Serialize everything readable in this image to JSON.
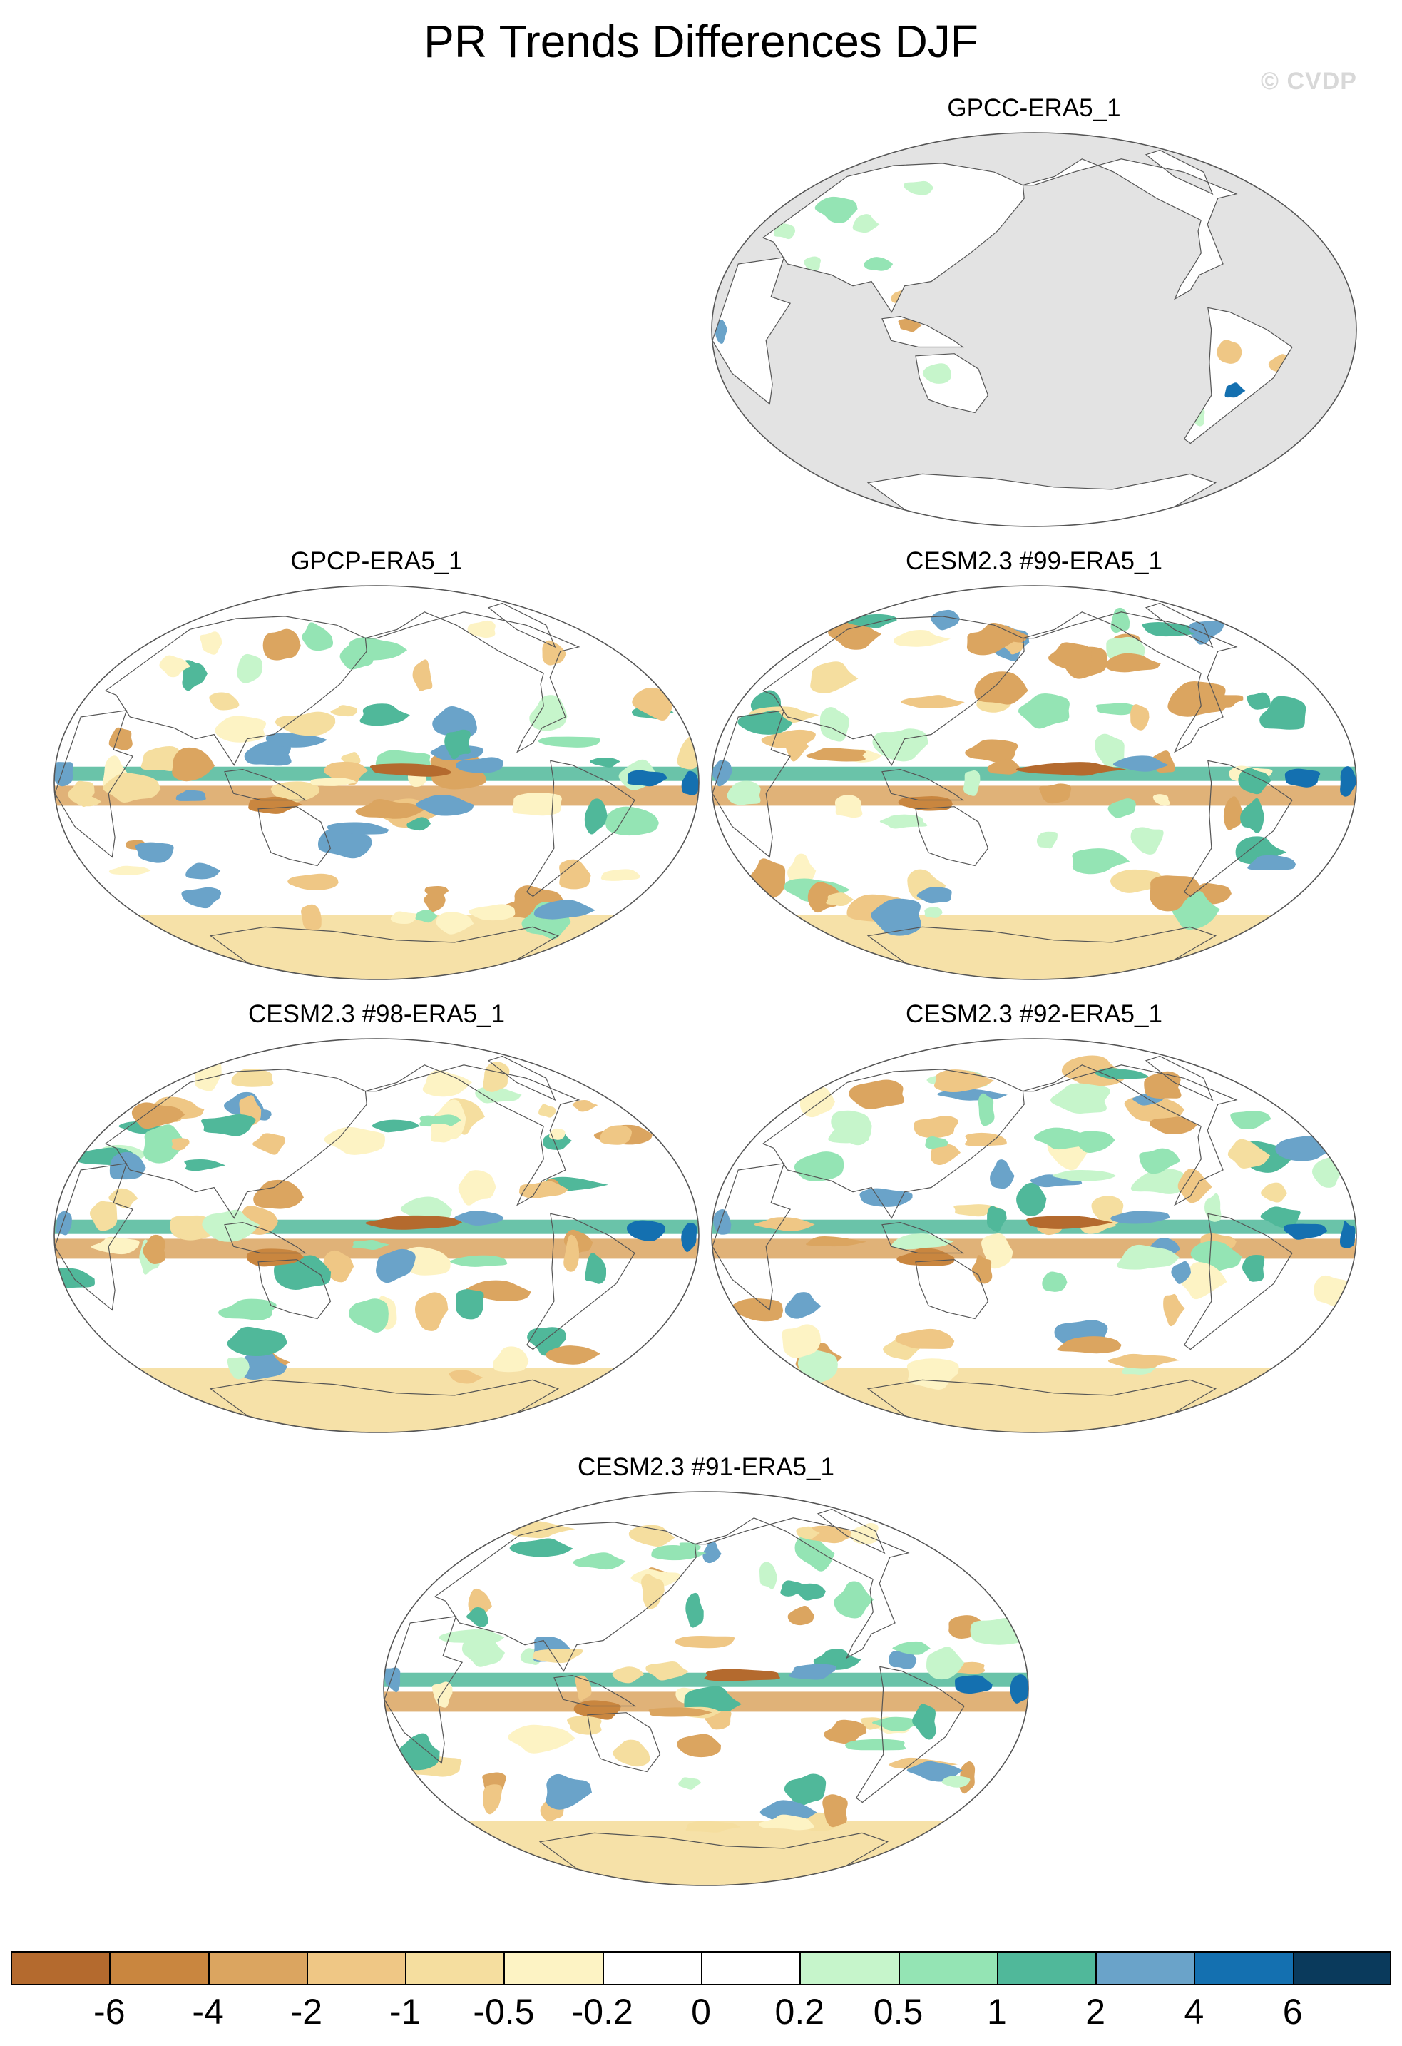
{
  "title": "PR Trends Differences DJF",
  "watermark": "© CVDP",
  "colorbar": {
    "colors": [
      "#b46a2e",
      "#c9863f",
      "#dba560",
      "#efc785",
      "#f5de9f",
      "#fdf3c4",
      "#ffffff",
      "#ffffff",
      "#c6f5cb",
      "#94e4b4",
      "#50b89a",
      "#6aa3c9",
      "#1470b0",
      "#0a3a5c"
    ],
    "labels": [
      "-6",
      "-4",
      "-2",
      "-1",
      "-0.5",
      "-0.2",
      "0",
      "0.2",
      "0.5",
      "1",
      "2",
      "4",
      "6"
    ]
  },
  "panels": [
    {
      "title": "GPCC-ERA5_1",
      "type": "land"
    },
    {
      "title": "GPCP-ERA5_1",
      "type": "global"
    },
    {
      "title": "CESM2.3 #99-ERA5_1",
      "type": "global"
    },
    {
      "title": "CESM2.3 #98-ERA5_1",
      "type": "global"
    },
    {
      "title": "CESM2.3 #92-ERA5_1",
      "type": "global"
    },
    {
      "title": "CESM2.3 #91-ERA5_1",
      "type": "global"
    }
  ]
}
